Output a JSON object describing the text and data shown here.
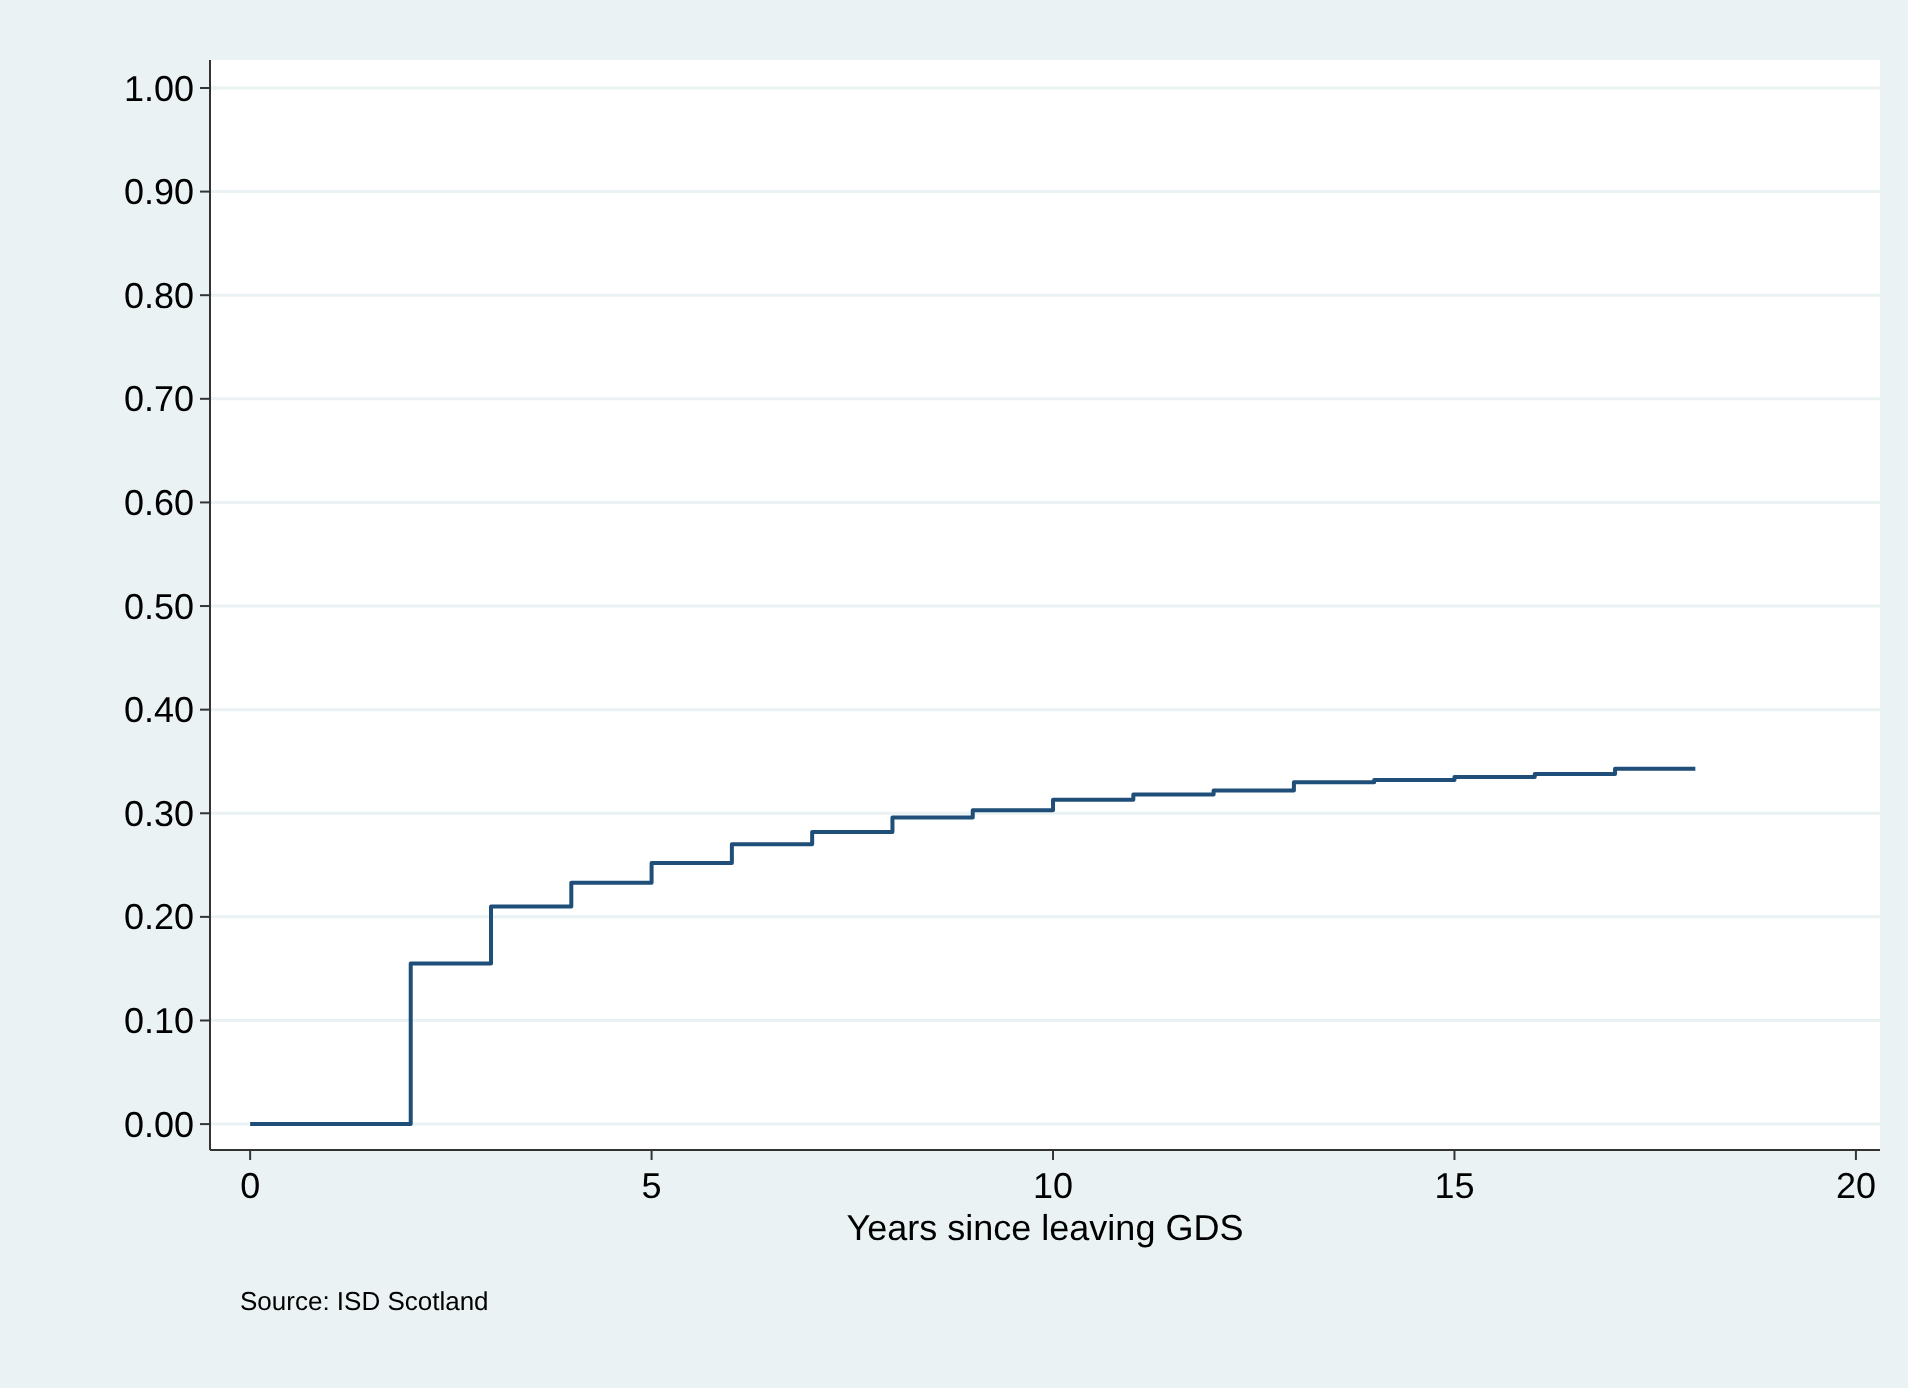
{
  "chart_data": {
    "type": "step",
    "xlabel": "Years since leaving GDS",
    "annotations": [
      "Source: ISD Scotland"
    ],
    "x": [
      0,
      1,
      2,
      3,
      4,
      5,
      6,
      7,
      8,
      9,
      10,
      11,
      12,
      13,
      14,
      15,
      16,
      17,
      18
    ],
    "series": [
      {
        "color": "#1f4e79",
        "values": [
          0,
          0,
          0.155,
          0.21,
          0.233,
          0.252,
          0.27,
          0.282,
          0.296,
          0.303,
          0.313,
          0.318,
          0.322,
          0.33,
          0.332,
          0.335,
          0.338,
          0.343,
          0.343
        ]
      }
    ],
    "xlim": [
      -0.5,
      20.3
    ],
    "xticks": [
      0,
      5,
      10,
      15,
      20
    ],
    "ylim": [
      -0.025,
      1.027
    ],
    "yticks": [
      {
        "value": 0,
        "label": "0.00"
      },
      {
        "value": 0.1,
        "label": "0.10"
      },
      {
        "value": 0.2,
        "label": "0.20"
      },
      {
        "value": 0.3,
        "label": "0.30"
      },
      {
        "value": 0.4,
        "label": "0.40"
      },
      {
        "value": 0.5,
        "label": "0.50"
      },
      {
        "value": 0.6,
        "label": "0.60"
      },
      {
        "value": 0.7,
        "label": "0.70"
      },
      {
        "value": 0.8,
        "label": "0.80"
      },
      {
        "value": 0.9,
        "label": "0.90"
      },
      {
        "value": 1,
        "label": "1.00"
      }
    ],
    "grid": "y"
  }
}
